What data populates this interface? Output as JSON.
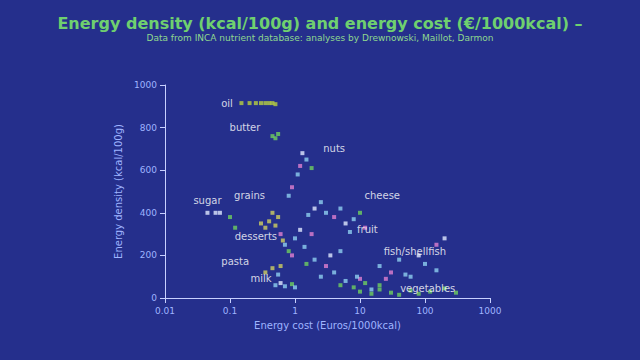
{
  "chart_data": {
    "type": "scatter",
    "title": "Energy density (kcal/100g) and energy cost (€/1000kcal) –",
    "subtitle": "Data from INCA nutrient database: analyses by Drewnowski, Maillot, Darmon",
    "x_label": "Energy cost (Euros/1000kcal)",
    "y_label": "Energy density (kcal/100g)",
    "log": "x",
    "grid": false,
    "marker": "square",
    "xlim": [
      0.01,
      1000
    ],
    "xticks": [
      0.01,
      0.1,
      1,
      10,
      100,
      1000
    ],
    "ylim": [
      0,
      1000
    ],
    "yticks": [
      0,
      200,
      400,
      600,
      800,
      1000
    ],
    "x": [
      0.15,
      0.2,
      0.25,
      0.3,
      0.35,
      0.4,
      0.45,
      0.5,
      0.45,
      0.5,
      0.55,
      0.045,
      0.06,
      0.07,
      0.1,
      0.12,
      0.3,
      0.35,
      0.4,
      0.5,
      0.45,
      0.55,
      1.2,
      1.5,
      1.3,
      1.8,
      1.1,
      0.9,
      0.8,
      3,
      4,
      5,
      6,
      8,
      10,
      7,
      12,
      2.5,
      2,
      1.6,
      0.6,
      0.7,
      0.8,
      1.0,
      1.2,
      1.4,
      0.9,
      0.65,
      0.35,
      0.45,
      0.55,
      0.6,
      0.5,
      0.6,
      0.7,
      0.9,
      1.0,
      5,
      6,
      8,
      10,
      12,
      15,
      20,
      9,
      20,
      30,
      40,
      60,
      80,
      100,
      150,
      25,
      50,
      10,
      15,
      20,
      30,
      40,
      60,
      80,
      120,
      200,
      300,
      150,
      200,
      2,
      3,
      4,
      1.5,
      2.5,
      3.5,
      5,
      1.8
    ],
    "y": [
      915,
      915,
      915,
      915,
      915,
      915,
      915,
      910,
      760,
      750,
      770,
      400,
      400,
      400,
      380,
      330,
      350,
      330,
      360,
      340,
      400,
      380,
      620,
      650,
      680,
      610,
      580,
      520,
      480,
      400,
      380,
      420,
      350,
      370,
      400,
      310,
      330,
      450,
      420,
      390,
      300,
      250,
      220,
      280,
      320,
      240,
      200,
      270,
      120,
      140,
      110,
      150,
      60,
      70,
      55,
      65,
      50,
      60,
      80,
      50,
      90,
      70,
      40,
      60,
      100,
      150,
      120,
      180,
      100,
      200,
      160,
      130,
      90,
      110,
      30,
      20,
      40,
      25,
      15,
      35,
      20,
      30,
      45,
      25,
      250,
      280,
      180,
      150,
      120,
      160,
      100,
      200,
      220,
      300
    ],
    "colors": [
      "#b8d040",
      "#b8d040",
      "#b8d040",
      "#b8d040",
      "#b8d040",
      "#b8d040",
      "#b8d040",
      "#b8d040",
      "#6fcf5f",
      "#6fcf5f",
      "#6fcf5f",
      "#e0e8ff",
      "#e0e8ff",
      "#e0e8ff",
      "#6fcf5f",
      "#6fcf5f",
      "#d0d060",
      "#d0d060",
      "#d0d060",
      "#d0d060",
      "#d0d060",
      "#d0d060",
      "#e080d0",
      "#8fd0f0",
      "#e0e8ff",
      "#6fcf5f",
      "#8fd0f0",
      "#e080d0",
      "#8fd0f0",
      "#8fd0f0",
      "#e080d0",
      "#8fd0f0",
      "#e0e8ff",
      "#8fd0f0",
      "#6fcf5f",
      "#8fd0f0",
      "#e080d0",
      "#8fd0f0",
      "#e0e8ff",
      "#8fd0f0",
      "#e080d0",
      "#8fd0f0",
      "#6fcf5f",
      "#8fd0f0",
      "#e0e8ff",
      "#8fd0f0",
      "#e080d0",
      "#d0d060",
      "#d0d060",
      "#d0d060",
      "#8fd0f0",
      "#d0d060",
      "#8fd0f0",
      "#e0e8ff",
      "#8fd0f0",
      "#6fcf5f",
      "#8fd0f0",
      "#6fcf5f",
      "#8fd0f0",
      "#6fcf5f",
      "#e080d0",
      "#6fcf5f",
      "#8fd0f0",
      "#6fcf5f",
      "#8fd0f0",
      "#8fd0f0",
      "#e080d0",
      "#8fd0f0",
      "#8fd0f0",
      "#e0e8ff",
      "#8fd0f0",
      "#8fd0f0",
      "#e080d0",
      "#8fd0f0",
      "#6fcf5f",
      "#6fcf5f",
      "#6fcf5f",
      "#6fcf5f",
      "#6fcf5f",
      "#6fcf5f",
      "#6fcf5f",
      "#6fcf5f",
      "#6fcf5f",
      "#6fcf5f",
      "#e080d0",
      "#e0e8ff",
      "#8fd0f0",
      "#e080d0",
      "#8fd0f0",
      "#6fcf5f",
      "#8fd0f0",
      "#e0e8ff",
      "#8fd0f0",
      "#e080d0"
    ],
    "annotations": [
      {
        "text": "oil",
        "x": 0.09,
        "y": 915
      },
      {
        "text": "butter",
        "x": 0.17,
        "y": 800
      },
      {
        "text": "nuts",
        "x": 4,
        "y": 700
      },
      {
        "text": "sugar",
        "x": 0.045,
        "y": 460
      },
      {
        "text": "grains",
        "x": 0.2,
        "y": 480
      },
      {
        "text": "cheese",
        "x": 22,
        "y": 480
      },
      {
        "text": "desserts",
        "x": 0.25,
        "y": 290
      },
      {
        "text": "fruit",
        "x": 13,
        "y": 320
      },
      {
        "text": "fish/shellfish",
        "x": 70,
        "y": 220
      },
      {
        "text": "pasta",
        "x": 0.12,
        "y": 170
      },
      {
        "text": "milk",
        "x": 0.3,
        "y": 90
      },
      {
        "text": "vegetables",
        "x": 110,
        "y": 45
      }
    ]
  }
}
